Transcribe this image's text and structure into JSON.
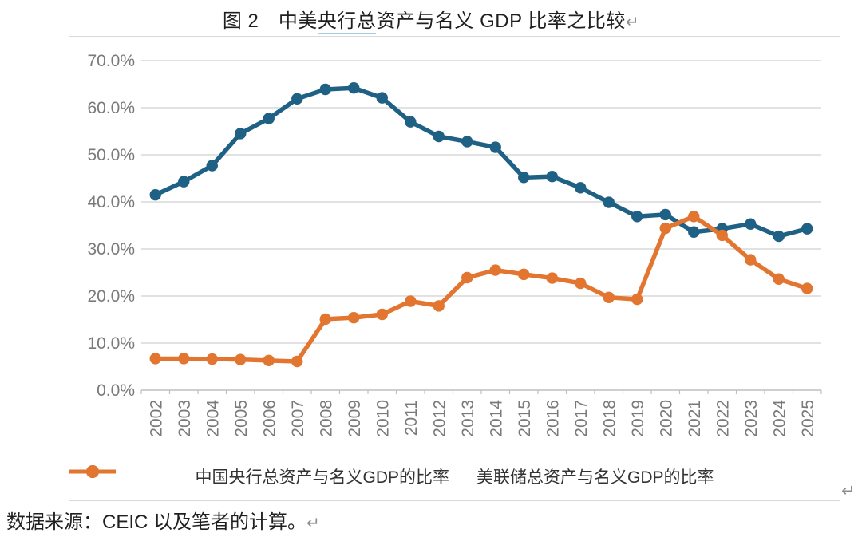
{
  "title": {
    "prefix": "图 2　中美",
    "underlined": "央行总",
    "suffix": "资产与名义 GDP 比率之比较",
    "return_mark": "↵"
  },
  "frame": {
    "return_mark": "↵"
  },
  "source": {
    "text": "数据来源：CEIC 以及笔者的计算。",
    "return_mark": "↵"
  },
  "colors": {
    "china_blue": "#1f6185",
    "us_orange": "#e2752f",
    "gridline": "#d9d9d9",
    "axis_line": "#bfbfbf",
    "tick_label": "#7a7a7a",
    "legend_text": "#333333"
  },
  "chart_data": {
    "type": "line",
    "title": "图 2　中美央行总资产与名义 GDP 比率之比较",
    "categories": [
      "2002",
      "2003",
      "2004",
      "2005",
      "2006",
      "2007",
      "2008",
      "2009",
      "2010",
      "2011",
      "2012",
      "2013",
      "2014",
      "2015",
      "2016",
      "2017",
      "2018",
      "2019",
      "2020",
      "2021",
      "2022",
      "2023",
      "2024",
      "2025"
    ],
    "series": [
      {
        "name": "中国央行总资产与名义GDP的比率",
        "color": "#1f6185",
        "values": [
          41.5,
          44.3,
          47.7,
          54.5,
          57.7,
          61.9,
          63.9,
          64.2,
          62.1,
          57.0,
          53.9,
          52.8,
          51.6,
          45.2,
          45.4,
          43.0,
          39.9,
          36.9,
          37.3,
          33.6,
          34.3,
          35.3,
          32.7,
          34.3
        ]
      },
      {
        "name": "美联储总资产与名义GDP的比率",
        "color": "#e2752f",
        "values": [
          6.7,
          6.7,
          6.6,
          6.5,
          6.3,
          6.1,
          15.1,
          15.4,
          16.1,
          18.9,
          17.9,
          23.9,
          25.5,
          24.6,
          23.8,
          22.7,
          19.7,
          19.3,
          34.4,
          36.9,
          32.9,
          27.7,
          23.6,
          21.6
        ]
      }
    ],
    "ylim": [
      0,
      70
    ],
    "ytick_step": 10,
    "ytick_decimals": 1,
    "ytick_suffix": "%",
    "grid": "horizontal",
    "legend_position": "bottom"
  }
}
